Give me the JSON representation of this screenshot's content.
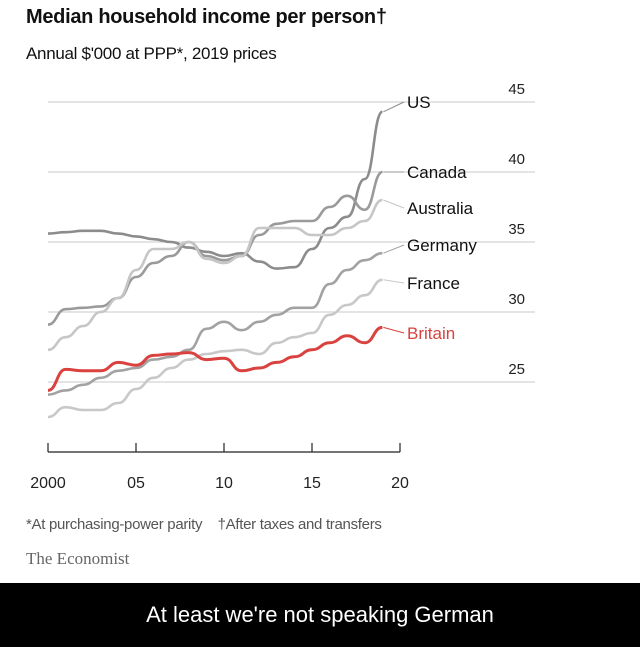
{
  "chart_data": {
    "type": "line",
    "title": "Median household income per person†",
    "subtitle": "Annual $'000 at PPP*, 2019 prices",
    "x": [
      2000,
      2001,
      2002,
      2003,
      2004,
      2005,
      2006,
      2007,
      2008,
      2009,
      2010,
      2011,
      2012,
      2013,
      2014,
      2015,
      2016,
      2017,
      2018,
      2019
    ],
    "x_ticks": [
      2000,
      2005,
      2010,
      2015,
      2020
    ],
    "x_tick_labels": [
      "2000",
      "05",
      "10",
      "15",
      "20"
    ],
    "xlim": [
      2000,
      2020
    ],
    "y_ticks": [
      25,
      30,
      35,
      40,
      45
    ],
    "y_tick_labels": [
      "25",
      "30",
      "35",
      "40",
      "45"
    ],
    "ylim": [
      20,
      45
    ],
    "y_axis_side": "right",
    "grid": true,
    "series": [
      {
        "name": "US",
        "color": "#8c8c8c",
        "values": [
          35.6,
          35.7,
          35.8,
          35.8,
          35.6,
          35.4,
          35.2,
          35.0,
          34.6,
          34.3,
          34.0,
          34.2,
          33.6,
          33.1,
          33.2,
          34.5,
          36.0,
          36.8,
          39.5,
          44.3
        ]
      },
      {
        "name": "Canada",
        "color": "#9a9a9a",
        "values": [
          29.1,
          30.2,
          30.3,
          30.4,
          31.0,
          32.5,
          33.5,
          34.0,
          35.0,
          34.0,
          33.7,
          34.0,
          35.5,
          36.3,
          36.5,
          36.5,
          37.5,
          38.3,
          37.3,
          40.0
        ]
      },
      {
        "name": "Australia",
        "color": "#c6c6c6",
        "values": [
          27.3,
          28.2,
          29.0,
          30.0,
          31.0,
          33.0,
          34.5,
          34.5,
          35.0,
          33.8,
          33.5,
          34.0,
          36.0,
          36.0,
          36.0,
          35.5,
          35.5,
          36.0,
          36.5,
          38.0
        ]
      },
      {
        "name": "Germany",
        "color": "#a2a2a2",
        "values": [
          24.1,
          24.4,
          24.8,
          25.3,
          25.8,
          26.0,
          26.6,
          26.8,
          27.3,
          28.8,
          29.3,
          28.7,
          29.3,
          29.8,
          30.3,
          30.3,
          32.0,
          33.0,
          33.7,
          34.2
        ]
      },
      {
        "name": "France",
        "color": "#c8c8c8",
        "values": [
          22.5,
          23.2,
          23.0,
          23.0,
          23.5,
          24.5,
          25.3,
          26.0,
          26.6,
          27.0,
          27.2,
          27.3,
          27.0,
          27.8,
          28.2,
          28.5,
          29.8,
          30.5,
          31.2,
          32.3
        ]
      },
      {
        "name": "Britain",
        "color": "#d9423f",
        "values": [
          24.4,
          25.9,
          25.8,
          25.8,
          26.4,
          26.2,
          26.9,
          27.0,
          27.1,
          26.6,
          26.7,
          25.8,
          26.0,
          26.4,
          26.8,
          27.3,
          27.8,
          28.3,
          27.8,
          28.9
        ]
      }
    ],
    "footnote_ppp": "*At purchasing-power parity",
    "footnote_income": "†After taxes and transfers",
    "source": "The Economist"
  },
  "caption": "At least we're not speaking German"
}
